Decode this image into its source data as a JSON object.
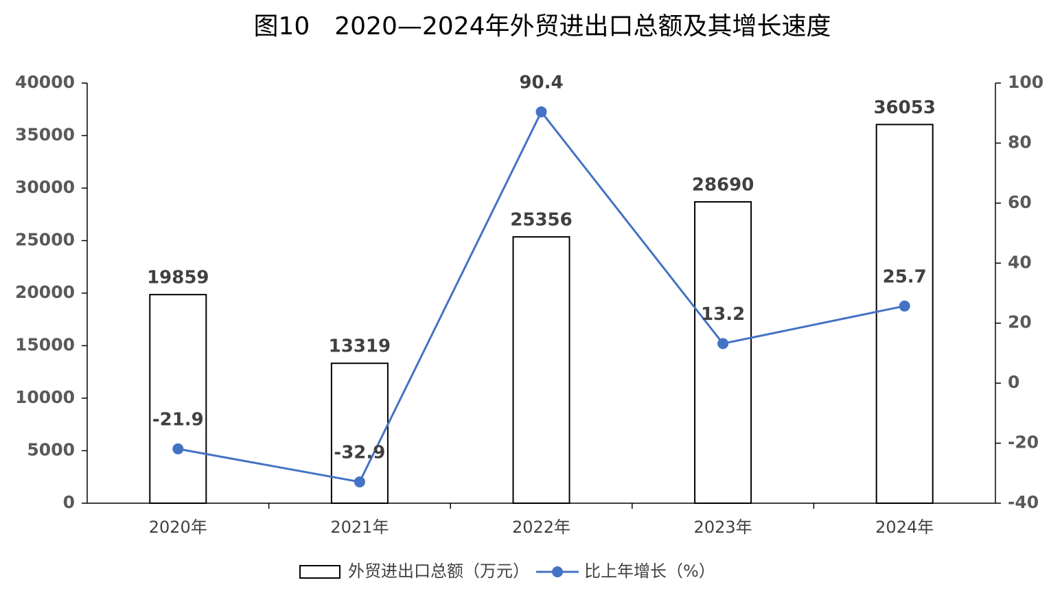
{
  "chart_data": {
    "type": "bar",
    "title": "图10　2020—2024年外贸进出口总额及其增长速度",
    "categories": [
      "2020年",
      "2021年",
      "2022年",
      "2023年",
      "2024年"
    ],
    "series": [
      {
        "name": "外贸进出口总额（万元）",
        "type": "bar",
        "color": "#ffffff",
        "values": [
          19859,
          13319,
          25356,
          28690,
          36053
        ]
      },
      {
        "name": "比上年增长（%）",
        "type": "line",
        "axis": "y2",
        "color": "#4472c4",
        "values": [
          -21.9,
          -32.9,
          90.4,
          13.2,
          25.7
        ]
      }
    ],
    "ylim": [
      0,
      40000
    ],
    "yticks": [
      0,
      5000,
      10000,
      15000,
      20000,
      25000,
      30000,
      35000,
      40000
    ],
    "y2lim": [
      -40,
      100
    ],
    "y2ticks": [
      -40,
      -20,
      0,
      20,
      40,
      60,
      80,
      100
    ],
    "legend": "bottom"
  }
}
